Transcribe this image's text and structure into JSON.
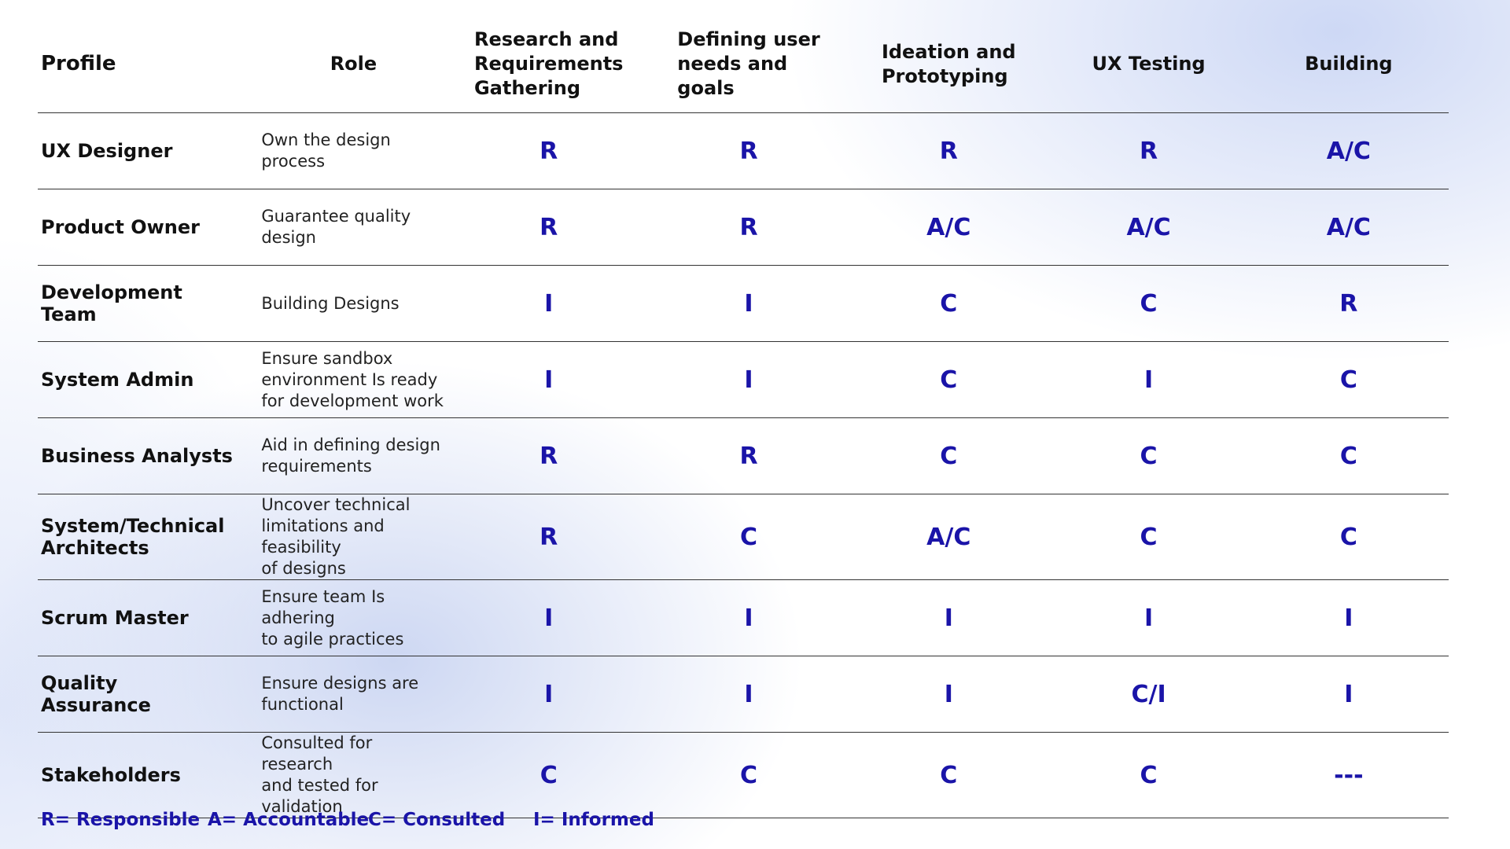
{
  "headers": {
    "profile": "Profile",
    "role": "Role",
    "stages": [
      [
        "Research and",
        "Requirements",
        "Gathering"
      ],
      [
        "Defining user",
        "needs and",
        "goals"
      ],
      [
        "Ideation and",
        "Prototyping"
      ],
      [
        "UX Testing"
      ],
      [
        "Building"
      ]
    ]
  },
  "rows": [
    {
      "profile": [
        "UX Designer"
      ],
      "role": [
        "Own the design",
        "process"
      ],
      "values": [
        "R",
        "R",
        "R",
        "R",
        "A/C"
      ]
    },
    {
      "profile": [
        "Product Owner"
      ],
      "role": [
        "Guarantee quality",
        "design"
      ],
      "values": [
        "R",
        "R",
        "A/C",
        "A/C",
        "A/C"
      ]
    },
    {
      "profile": [
        "Development",
        "Team"
      ],
      "role": [
        "Building Designs"
      ],
      "values": [
        "I",
        "I",
        "C",
        "C",
        "R"
      ]
    },
    {
      "profile": [
        "System Admin"
      ],
      "role": [
        "Ensure sandbox",
        "environment Is ready",
        "for development work"
      ],
      "values": [
        "I",
        "I",
        "C",
        "I",
        "C"
      ]
    },
    {
      "profile": [
        "Business Analysts"
      ],
      "role": [
        "Aid in defining design",
        "requirements"
      ],
      "values": [
        "R",
        "R",
        "C",
        "C",
        "C"
      ]
    },
    {
      "profile": [
        "System/Technical",
        "Architects"
      ],
      "role": [
        "Uncover technical",
        "limitations and feasibility",
        "of designs"
      ],
      "values": [
        "R",
        "C",
        "A/C",
        "C",
        "C"
      ]
    },
    {
      "profile": [
        "Scrum Master"
      ],
      "role": [
        "Ensure team Is adhering",
        "to agile practices"
      ],
      "values": [
        "I",
        "I",
        "I",
        "I",
        "I"
      ]
    },
    {
      "profile": [
        "Quality",
        "Assurance"
      ],
      "role": [
        "Ensure designs are",
        "functional"
      ],
      "values": [
        "I",
        "I",
        "I",
        "C/I",
        "I"
      ]
    },
    {
      "profile": [
        "Stakeholders"
      ],
      "role": [
        "Consulted for research",
        "and tested for validation"
      ],
      "values": [
        "C",
        "C",
        "C",
        "C",
        "---"
      ]
    }
  ],
  "legend": [
    "R= Responsible",
    "A= Accountable",
    "C= Consulted",
    "I= Informed"
  ],
  "colors": {
    "accent": "#1a14a8",
    "text": "#111111",
    "rule": "#333333"
  }
}
